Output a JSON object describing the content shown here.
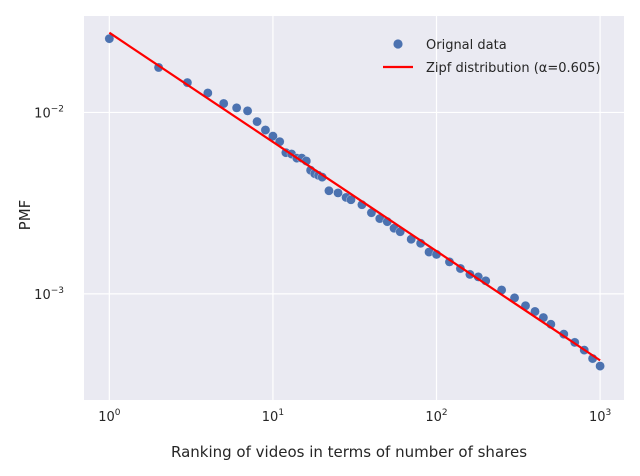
{
  "chart_data": {
    "type": "scatter",
    "title": "",
    "xlabel": "Ranking of videos in terms of number of shares",
    "ylabel": "PMF",
    "xscale": "log",
    "yscale": "log",
    "xlim": [
      0.7,
      1400
    ],
    "ylim": [
      0.00026,
      0.034
    ],
    "grid": true,
    "legend_position": "top-right",
    "background": "#eaeaf2",
    "x_ticks": [
      {
        "value": 1,
        "base": "10",
        "exp": "0"
      },
      {
        "value": 10,
        "base": "10",
        "exp": "1"
      },
      {
        "value": 100,
        "base": "10",
        "exp": "2"
      },
      {
        "value": 1000,
        "base": "10",
        "exp": "3"
      }
    ],
    "y_ticks": [
      {
        "value": 0.001,
        "base": "10",
        "exp": "−3"
      },
      {
        "value": 0.01,
        "base": "10",
        "exp": "−2"
      }
    ],
    "series": [
      {
        "name": "Orignal data",
        "type": "scatter",
        "color": "#4c72b0",
        "points": [
          [
            1,
            0.0255
          ],
          [
            2,
            0.0177
          ],
          [
            3,
            0.0146
          ],
          [
            4,
            0.0128
          ],
          [
            5,
            0.0112
          ],
          [
            6,
            0.0106
          ],
          [
            7,
            0.0102
          ],
          [
            8,
            0.0089
          ],
          [
            9,
            0.008
          ],
          [
            10,
            0.0074
          ],
          [
            11,
            0.0069
          ],
          [
            12,
            0.006
          ],
          [
            13,
            0.0059
          ],
          [
            14,
            0.0056
          ],
          [
            15,
            0.0056
          ],
          [
            16,
            0.0054
          ],
          [
            17,
            0.0048
          ],
          [
            18,
            0.0046
          ],
          [
            19,
            0.0045
          ],
          [
            20,
            0.0044
          ],
          [
            22,
            0.0037
          ],
          [
            25,
            0.0036
          ],
          [
            28,
            0.0034
          ],
          [
            30,
            0.0033
          ],
          [
            35,
            0.0031
          ],
          [
            40,
            0.0028
          ],
          [
            45,
            0.0026
          ],
          [
            50,
            0.0025
          ],
          [
            55,
            0.0023
          ],
          [
            60,
            0.0022
          ],
          [
            70,
            0.002
          ],
          [
            80,
            0.0019
          ],
          [
            90,
            0.0017
          ],
          [
            100,
            0.00165
          ],
          [
            120,
            0.0015
          ],
          [
            140,
            0.00138
          ],
          [
            160,
            0.00128
          ],
          [
            180,
            0.00124
          ],
          [
            200,
            0.00118
          ],
          [
            250,
            0.00105
          ],
          [
            300,
            0.00095
          ],
          [
            350,
            0.00086
          ],
          [
            400,
            0.0008
          ],
          [
            450,
            0.00074
          ],
          [
            500,
            0.00068
          ],
          [
            600,
            0.0006
          ],
          [
            700,
            0.00054
          ],
          [
            800,
            0.00049
          ],
          [
            900,
            0.00044
          ],
          [
            1000,
            0.0004
          ]
        ]
      },
      {
        "name": "Zipf distribution (α=0.605)",
        "type": "line",
        "color": "#ff0000",
        "points": [
          [
            1,
            0.0275
          ],
          [
            1000,
            0.00043
          ]
        ]
      }
    ]
  }
}
